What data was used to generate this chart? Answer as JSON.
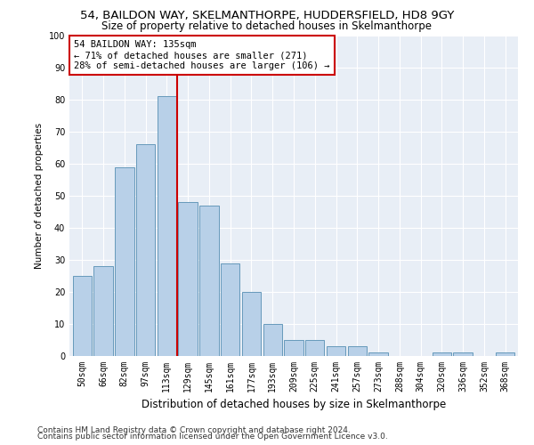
{
  "title1": "54, BAILDON WAY, SKELMANTHORPE, HUDDERSFIELD, HD8 9GY",
  "title2": "Size of property relative to detached houses in Skelmanthorpe",
  "xlabel": "Distribution of detached houses by size in Skelmanthorpe",
  "ylabel": "Number of detached properties",
  "categories": [
    "50sqm",
    "66sqm",
    "82sqm",
    "97sqm",
    "113sqm",
    "129sqm",
    "145sqm",
    "161sqm",
    "177sqm",
    "193sqm",
    "209sqm",
    "225sqm",
    "241sqm",
    "257sqm",
    "273sqm",
    "288sqm",
    "304sqm",
    "320sqm",
    "336sqm",
    "352sqm",
    "368sqm"
  ],
  "values": [
    25,
    28,
    59,
    66,
    81,
    48,
    47,
    29,
    20,
    10,
    5,
    5,
    3,
    3,
    1,
    0,
    0,
    1,
    1,
    0,
    1
  ],
  "bar_color": "#b8d0e8",
  "bar_edge_color": "#6699bb",
  "highlight_color": "#cc0000",
  "annotation_text": "54 BAILDON WAY: 135sqm\n← 71% of detached houses are smaller (271)\n28% of semi-detached houses are larger (106) →",
  "annotation_box_color": "#ffffff",
  "annotation_box_edge": "#cc0000",
  "ylim": [
    0,
    100
  ],
  "yticks": [
    0,
    10,
    20,
    30,
    40,
    50,
    60,
    70,
    80,
    90,
    100
  ],
  "footer1": "Contains HM Land Registry data © Crown copyright and database right 2024.",
  "footer2": "Contains public sector information licensed under the Open Government Licence v3.0.",
  "bg_color": "#e8eef6",
  "title1_fontsize": 9.5,
  "title2_fontsize": 8.5,
  "xlabel_fontsize": 8.5,
  "ylabel_fontsize": 7.5,
  "tick_fontsize": 7,
  "annotation_fontsize": 7.5,
  "footer_fontsize": 6.5
}
